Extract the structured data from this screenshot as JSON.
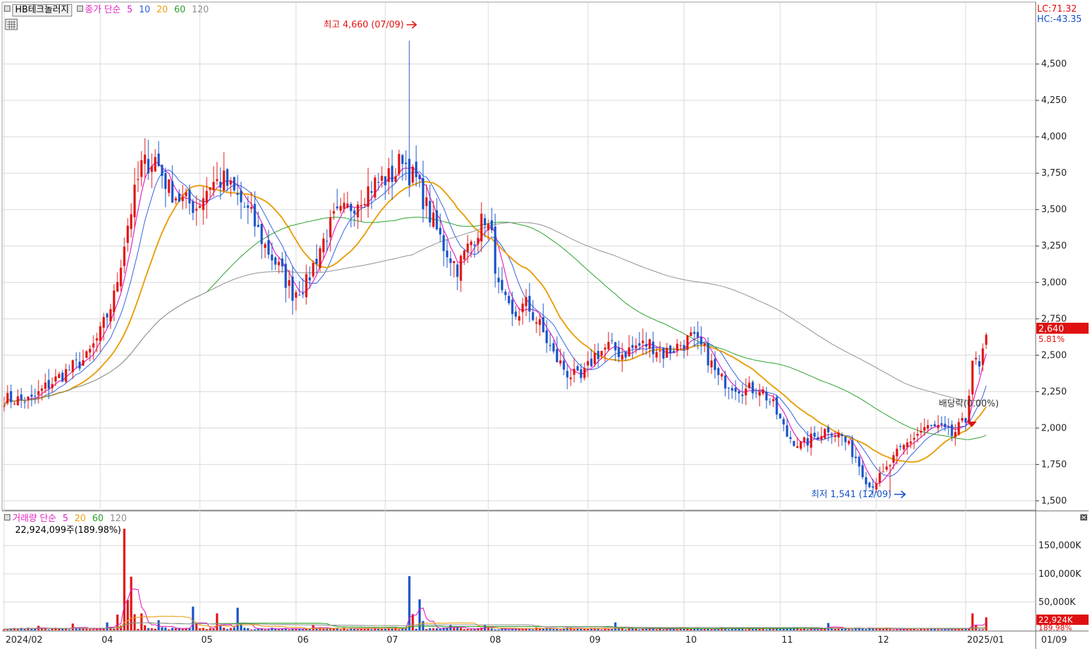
{
  "title_bar": {
    "stock_name": "HB테크놀러지",
    "price_legend": {
      "label": "종가 단순",
      "periods": [
        "5",
        "10",
        "20",
        "60",
        "120"
      ]
    },
    "volume_legend": {
      "label": "거래량 단순",
      "periods": [
        "5",
        "20",
        "60",
        "120"
      ]
    },
    "volume_current": "22,924,099주(189.98%)"
  },
  "colors": {
    "up": "#e01010",
    "down": "#1450c8",
    "ma5": "#e020c0",
    "ma10": "#3060e0",
    "ma20": "#e8a010",
    "ma60": "#28a028",
    "ma120": "#909090",
    "grid": "#d8d8d8"
  },
  "indicators": {
    "lc": "LC:71.32",
    "hc": "HC:-43.35"
  },
  "chart_data": {
    "type": "candlestick",
    "price_axis": {
      "min": 1450,
      "max": 4760,
      "ticks": [
        1500,
        1750,
        2000,
        2250,
        2500,
        2750,
        3000,
        3250,
        3500,
        3750,
        4000,
        4250,
        4500
      ],
      "tick_labels": [
        "1,500",
        "1,750",
        "2,000",
        "2,250",
        "2,500",
        "2,750",
        "3,000",
        "3,250",
        "3,500",
        "3,750",
        "4,000",
        "4,250",
        "4,500"
      ]
    },
    "volume_axis": {
      "min": 0,
      "max": 180000,
      "ticks": [
        50000,
        100000,
        150000
      ],
      "tick_labels": [
        "50,000K",
        "100,000K",
        "150,000K"
      ]
    },
    "x_labels": [
      "2024/02",
      "04",
      "05",
      "06",
      "07",
      "08",
      "09",
      "10",
      "11",
      "12",
      "2025/01",
      "01/09"
    ],
    "current_price": {
      "value": 2640,
      "label": "2,640",
      "change": "5.81%"
    },
    "current_volume": {
      "value": 22924,
      "label": "22,924K",
      "ratio": "189.98%"
    },
    "high_annotation": {
      "value": 4660,
      "label": "최고 4,660 (07/09)"
    },
    "low_annotation": {
      "value": 1541,
      "label": "최저 1,541 (12/09)"
    },
    "event_annotation": {
      "label": "배당락(0.00%)"
    },
    "close_anchors": [
      [
        0,
        2200
      ],
      [
        8,
        2190
      ],
      [
        12,
        2280
      ],
      [
        20,
        2420
      ],
      [
        24,
        2480
      ],
      [
        28,
        2650
      ],
      [
        32,
        2900
      ],
      [
        36,
        3400
      ],
      [
        40,
        3800
      ],
      [
        44,
        3850
      ],
      [
        48,
        3640
      ],
      [
        52,
        3560
      ],
      [
        56,
        3520
      ],
      [
        60,
        3680
      ],
      [
        64,
        3700
      ],
      [
        68,
        3580
      ],
      [
        72,
        3450
      ],
      [
        76,
        3250
      ],
      [
        80,
        3100
      ],
      [
        84,
        2930
      ],
      [
        88,
        2990
      ],
      [
        92,
        3240
      ],
      [
        96,
        3430
      ],
      [
        100,
        3500
      ],
      [
        104,
        3600
      ],
      [
        108,
        3680
      ],
      [
        112,
        3720
      ],
      [
        114,
        3750
      ],
      [
        116,
        3880
      ],
      [
        118,
        3750
      ],
      [
        120,
        3700
      ],
      [
        124,
        3460
      ],
      [
        128,
        3250
      ],
      [
        132,
        3100
      ],
      [
        136,
        3280
      ],
      [
        140,
        3450
      ],
      [
        142,
        3300
      ],
      [
        144,
        2950
      ],
      [
        148,
        2750
      ],
      [
        152,
        2850
      ],
      [
        156,
        2700
      ],
      [
        160,
        2500
      ],
      [
        164,
        2380
      ],
      [
        168,
        2330
      ],
      [
        172,
        2500
      ],
      [
        176,
        2560
      ],
      [
        180,
        2510
      ],
      [
        184,
        2560
      ],
      [
        188,
        2580
      ],
      [
        192,
        2510
      ],
      [
        196,
        2560
      ],
      [
        200,
        2620
      ],
      [
        204,
        2530
      ],
      [
        208,
        2340
      ],
      [
        212,
        2300
      ],
      [
        216,
        2260
      ],
      [
        220,
        2280
      ],
      [
        224,
        2150
      ],
      [
        228,
        1950
      ],
      [
        232,
        1880
      ],
      [
        236,
        1940
      ],
      [
        240,
        2000
      ],
      [
        244,
        1940
      ],
      [
        248,
        1800
      ],
      [
        252,
        1600
      ],
      [
        256,
        1680
      ],
      [
        260,
        1820
      ],
      [
        264,
        1920
      ],
      [
        268,
        2000
      ],
      [
        272,
        2000
      ],
      [
        276,
        1950
      ],
      [
        280,
        2050
      ],
      [
        282,
        2480
      ],
      [
        284,
        2400
      ],
      [
        286,
        2640
      ]
    ],
    "volume_spikes": [
      [
        10,
        8000
      ],
      [
        20,
        12000
      ],
      [
        30,
        14000
      ],
      [
        33,
        28000
      ],
      [
        35,
        180000
      ],
      [
        37,
        95000
      ],
      [
        40,
        30000
      ],
      [
        45,
        18000
      ],
      [
        55,
        42000
      ],
      [
        62,
        30000
      ],
      [
        68,
        40000
      ],
      [
        90,
        10000
      ],
      [
        118,
        96000
      ],
      [
        121,
        55000
      ],
      [
        130,
        10000
      ],
      [
        140,
        10000
      ],
      [
        178,
        14000
      ],
      [
        240,
        13000
      ],
      [
        282,
        30000
      ],
      [
        286,
        22924
      ]
    ]
  }
}
